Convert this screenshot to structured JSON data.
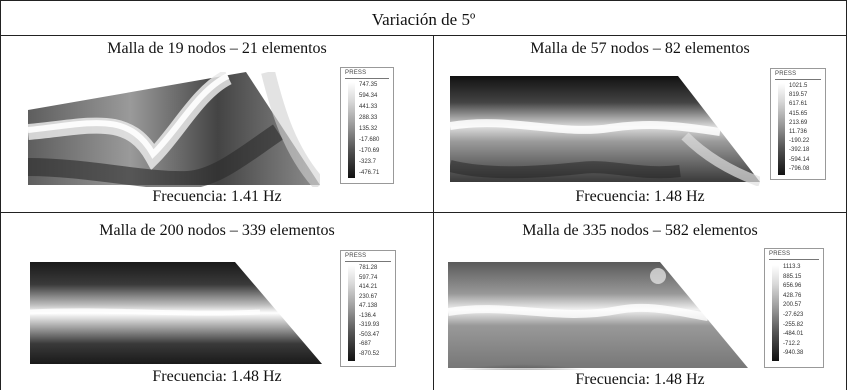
{
  "header": {
    "title": "Variación de    5º"
  },
  "cells": [
    {
      "title": "Malla de 19 nodos – 21 elementos",
      "frequency": "Frecuencia: 1.41 Hz",
      "legend_title": "PRESS",
      "legend_values": [
        "747.35",
        "594.34",
        "441.33",
        "288.33",
        "135.32",
        "-17.680",
        "-170.69",
        "-323.7",
        "-476.71",
        "-629.7"
      ]
    },
    {
      "title": "Malla de 57 nodos – 82 elementos",
      "frequency": "Frecuencia: 1.48 Hz",
      "legend_title": "PRESS",
      "legend_values": [
        "1021.5",
        "819.57",
        "617.61",
        "415.65",
        "213.69",
        "11.736",
        "-190.22",
        "-392.18",
        "-594.14",
        "-796.08"
      ]
    },
    {
      "title": "Malla de 200 nodos – 339 elementos",
      "frequency": "Frecuencia: 1.48 Hz",
      "legend_title": "PRESS",
      "legend_values": [
        "781.28",
        "597.74",
        "414.21",
        "230.67",
        "47.138",
        "-136.4",
        "-319.93",
        "-503.47",
        "-687",
        "-870.52"
      ]
    },
    {
      "title": "Malla de 335 nodos – 582 elementos",
      "frequency": "Frecuencia: 1.48 Hz",
      "legend_title": "PRESS",
      "legend_values": [
        "1113.3",
        "885.15",
        "656.96",
        "428.76",
        "200.57",
        "-27.623",
        "-255.82",
        "-484.01",
        "-712.2",
        "-940.38"
      ]
    }
  ]
}
